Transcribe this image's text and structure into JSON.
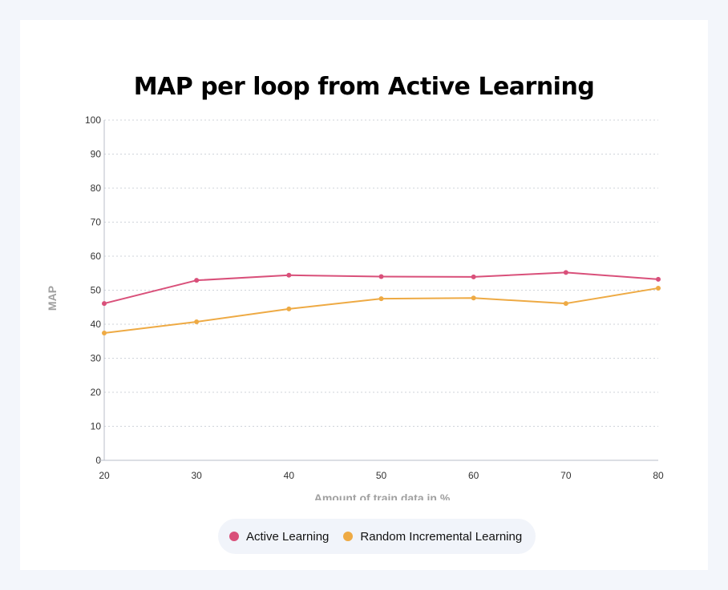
{
  "chart_data": {
    "type": "line",
    "title": "MAP per loop from Active Learning",
    "xlabel": "Amount of train data in %",
    "ylabel": "MAP",
    "x": [
      20,
      30,
      40,
      50,
      60,
      70,
      80
    ],
    "ylim": [
      0,
      100
    ],
    "yticks": [
      0,
      10,
      20,
      30,
      40,
      50,
      60,
      70,
      80,
      90,
      100
    ],
    "grid": true,
    "legend_position": "bottom",
    "series": [
      {
        "name": "Active Learning",
        "color": "#d9507a",
        "values": [
          46.1,
          52.9,
          54.4,
          54.0,
          53.9,
          55.2,
          53.2
        ]
      },
      {
        "name": "Random Incremental Learning",
        "color": "#eeaa44",
        "values": [
          37.4,
          40.7,
          44.5,
          47.5,
          47.7,
          46.1,
          50.6
        ]
      }
    ]
  }
}
